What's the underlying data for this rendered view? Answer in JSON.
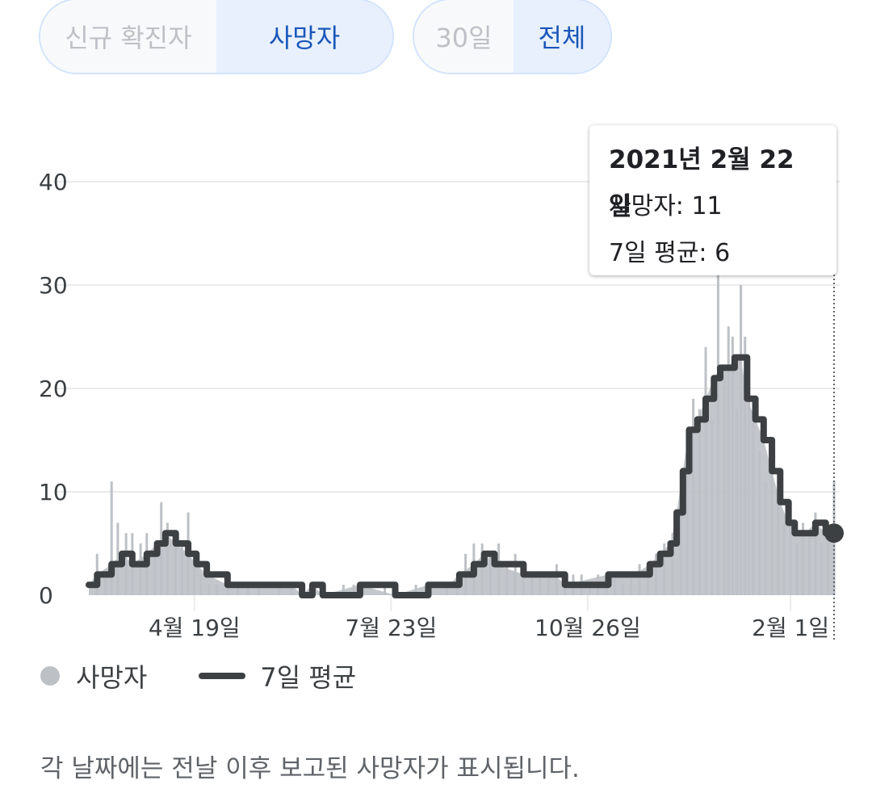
{
  "tabs": {
    "metric": [
      {
        "label": "신규 확진자",
        "selected": false
      },
      {
        "label": "사망자",
        "selected": true
      }
    ],
    "range": [
      {
        "label": "30일",
        "selected": false
      },
      {
        "label": "전체",
        "selected": true
      }
    ]
  },
  "tooltip": {
    "date": "2021년 2월 22일",
    "deaths_line": "사망자: 11",
    "avg_line": "7일 평균: 6"
  },
  "legend": {
    "bars_label": "사망자",
    "line_label": "7일 평균"
  },
  "footnote": "각 날짜에는 전날 이후 보고된 사망자가 표시됩니다.",
  "colors": {
    "bar": "#bdc1c6",
    "line": "#3c4043",
    "grid": "#ebebeb",
    "accent": "#1a57b8",
    "tab_selected_bg": "#e8f0fe",
    "tab_border": "#d2e3fc"
  },
  "chart_data": {
    "type": "bar",
    "x_range": [
      "2020-02-28",
      "2021-02-22"
    ],
    "y_ticks": [
      0,
      10,
      20,
      30,
      40
    ],
    "ylim": [
      0,
      45
    ],
    "x_ticks": [
      {
        "date": "2020-04-19",
        "label": "4월 19일"
      },
      {
        "date": "2020-07-23",
        "label": "7월 23일"
      },
      {
        "date": "2020-10-26",
        "label": "10월 26일"
      },
      {
        "date": "2021-02-01",
        "label": "2월 1일"
      }
    ],
    "grid": true,
    "highlight": {
      "date": "2021-02-22",
      "deaths": 11,
      "avg7": 6
    },
    "series": [
      {
        "name": "사망자",
        "kind": "bars",
        "points": [
          [
            "2020-02-28",
            0
          ],
          [
            "2020-03-03",
            4
          ],
          [
            "2020-03-07",
            2
          ],
          [
            "2020-03-10",
            11
          ],
          [
            "2020-03-13",
            7
          ],
          [
            "2020-03-17",
            6
          ],
          [
            "2020-03-20",
            6
          ],
          [
            "2020-03-24",
            5
          ],
          [
            "2020-03-27",
            6
          ],
          [
            "2020-03-31",
            5
          ],
          [
            "2020-04-03",
            9
          ],
          [
            "2020-04-06",
            7
          ],
          [
            "2020-04-10",
            6
          ],
          [
            "2020-04-13",
            5
          ],
          [
            "2020-04-16",
            8
          ],
          [
            "2020-04-19",
            4
          ],
          [
            "2020-04-22",
            2
          ],
          [
            "2020-04-26",
            1
          ],
          [
            "2020-04-30",
            1
          ],
          [
            "2020-05-05",
            1
          ],
          [
            "2020-05-10",
            1
          ],
          [
            "2020-05-15",
            1
          ],
          [
            "2020-05-20",
            1
          ],
          [
            "2020-05-25",
            0
          ],
          [
            "2020-05-30",
            1
          ],
          [
            "2020-06-05",
            1
          ],
          [
            "2020-06-10",
            0
          ],
          [
            "2020-06-15",
            1
          ],
          [
            "2020-06-20",
            0
          ],
          [
            "2020-06-25",
            0
          ],
          [
            "2020-06-30",
            1
          ],
          [
            "2020-07-05",
            1
          ],
          [
            "2020-07-10",
            1
          ],
          [
            "2020-07-15",
            0
          ],
          [
            "2020-07-20",
            1
          ],
          [
            "2020-07-25",
            0
          ],
          [
            "2020-07-30",
            0
          ],
          [
            "2020-08-04",
            1
          ],
          [
            "2020-08-09",
            0
          ],
          [
            "2020-08-14",
            0
          ],
          [
            "2020-08-19",
            1
          ],
          [
            "2020-08-24",
            2
          ],
          [
            "2020-08-28",
            4
          ],
          [
            "2020-09-01",
            5
          ],
          [
            "2020-09-05",
            5
          ],
          [
            "2020-09-09",
            4
          ],
          [
            "2020-09-13",
            5
          ],
          [
            "2020-09-17",
            3
          ],
          [
            "2020-09-21",
            4
          ],
          [
            "2020-09-25",
            3
          ],
          [
            "2020-09-29",
            2
          ],
          [
            "2020-10-03",
            2
          ],
          [
            "2020-10-07",
            2
          ],
          [
            "2020-10-11",
            3
          ],
          [
            "2020-10-15",
            2
          ],
          [
            "2020-10-19",
            2
          ],
          [
            "2020-10-23",
            2
          ],
          [
            "2020-10-27",
            1
          ],
          [
            "2020-10-31",
            2
          ],
          [
            "2020-11-04",
            2
          ],
          [
            "2020-11-08",
            2
          ],
          [
            "2020-11-12",
            1
          ],
          [
            "2020-11-16",
            2
          ],
          [
            "2020-11-20",
            3
          ],
          [
            "2020-11-24",
            2
          ],
          [
            "2020-11-28",
            4
          ],
          [
            "2020-12-02",
            5
          ],
          [
            "2020-12-06",
            6
          ],
          [
            "2020-12-10",
            10
          ],
          [
            "2020-12-13",
            14
          ],
          [
            "2020-12-16",
            19
          ],
          [
            "2020-12-19",
            18
          ],
          [
            "2020-12-22",
            24
          ],
          [
            "2020-12-25",
            17
          ],
          [
            "2020-12-28",
            31
          ],
          [
            "2020-12-31",
            22
          ],
          [
            "2021-01-02",
            26
          ],
          [
            "2021-01-04",
            25
          ],
          [
            "2021-01-06",
            18
          ],
          [
            "2021-01-08",
            30
          ],
          [
            "2021-01-10",
            25
          ],
          [
            "2021-01-12",
            19
          ],
          [
            "2021-01-14",
            17
          ],
          [
            "2021-01-17",
            14
          ],
          [
            "2021-01-20",
            11
          ],
          [
            "2021-01-23",
            14
          ],
          [
            "2021-01-26",
            9
          ],
          [
            "2021-01-29",
            7
          ],
          [
            "2021-02-01",
            9
          ],
          [
            "2021-02-04",
            5
          ],
          [
            "2021-02-07",
            7
          ],
          [
            "2021-02-10",
            6
          ],
          [
            "2021-02-13",
            8
          ],
          [
            "2021-02-16",
            5
          ],
          [
            "2021-02-19",
            7
          ],
          [
            "2021-02-22",
            11
          ]
        ]
      },
      {
        "name": "7일 평균",
        "kind": "line",
        "points": [
          [
            "2020-02-28",
            1
          ],
          [
            "2020-03-03",
            2
          ],
          [
            "2020-03-10",
            3
          ],
          [
            "2020-03-15",
            4
          ],
          [
            "2020-03-20",
            3
          ],
          [
            "2020-03-27",
            4
          ],
          [
            "2020-04-01",
            5
          ],
          [
            "2020-04-05",
            6
          ],
          [
            "2020-04-10",
            5
          ],
          [
            "2020-04-16",
            4
          ],
          [
            "2020-04-20",
            3
          ],
          [
            "2020-04-25",
            2
          ],
          [
            "2020-05-05",
            1
          ],
          [
            "2020-06-05",
            1
          ],
          [
            "2020-06-10",
            0
          ],
          [
            "2020-06-15",
            1
          ],
          [
            "2020-06-20",
            0
          ],
          [
            "2020-07-08",
            1
          ],
          [
            "2020-07-25",
            0
          ],
          [
            "2020-08-10",
            1
          ],
          [
            "2020-08-20",
            1
          ],
          [
            "2020-08-25",
            2
          ],
          [
            "2020-09-01",
            3
          ],
          [
            "2020-09-06",
            4
          ],
          [
            "2020-09-11",
            3
          ],
          [
            "2020-09-25",
            2
          ],
          [
            "2020-10-10",
            2
          ],
          [
            "2020-10-15",
            1
          ],
          [
            "2020-11-05",
            2
          ],
          [
            "2020-11-18",
            2
          ],
          [
            "2020-11-25",
            3
          ],
          [
            "2020-11-30",
            4
          ],
          [
            "2020-12-05",
            5
          ],
          [
            "2020-12-08",
            8
          ],
          [
            "2020-12-11",
            12
          ],
          [
            "2020-12-14",
            16
          ],
          [
            "2020-12-18",
            17
          ],
          [
            "2020-12-22",
            19
          ],
          [
            "2020-12-26",
            21
          ],
          [
            "2020-12-29",
            22
          ],
          [
            "2021-01-02",
            22
          ],
          [
            "2021-01-05",
            23
          ],
          [
            "2021-01-08",
            23
          ],
          [
            "2021-01-11",
            19
          ],
          [
            "2021-01-15",
            17
          ],
          [
            "2021-01-19",
            15
          ],
          [
            "2021-01-23",
            12
          ],
          [
            "2021-01-27",
            9
          ],
          [
            "2021-01-31",
            7
          ],
          [
            "2021-02-03",
            6
          ],
          [
            "2021-02-08",
            6
          ],
          [
            "2021-02-13",
            7
          ],
          [
            "2021-02-18",
            6
          ],
          [
            "2021-02-22",
            6
          ]
        ]
      }
    ]
  }
}
